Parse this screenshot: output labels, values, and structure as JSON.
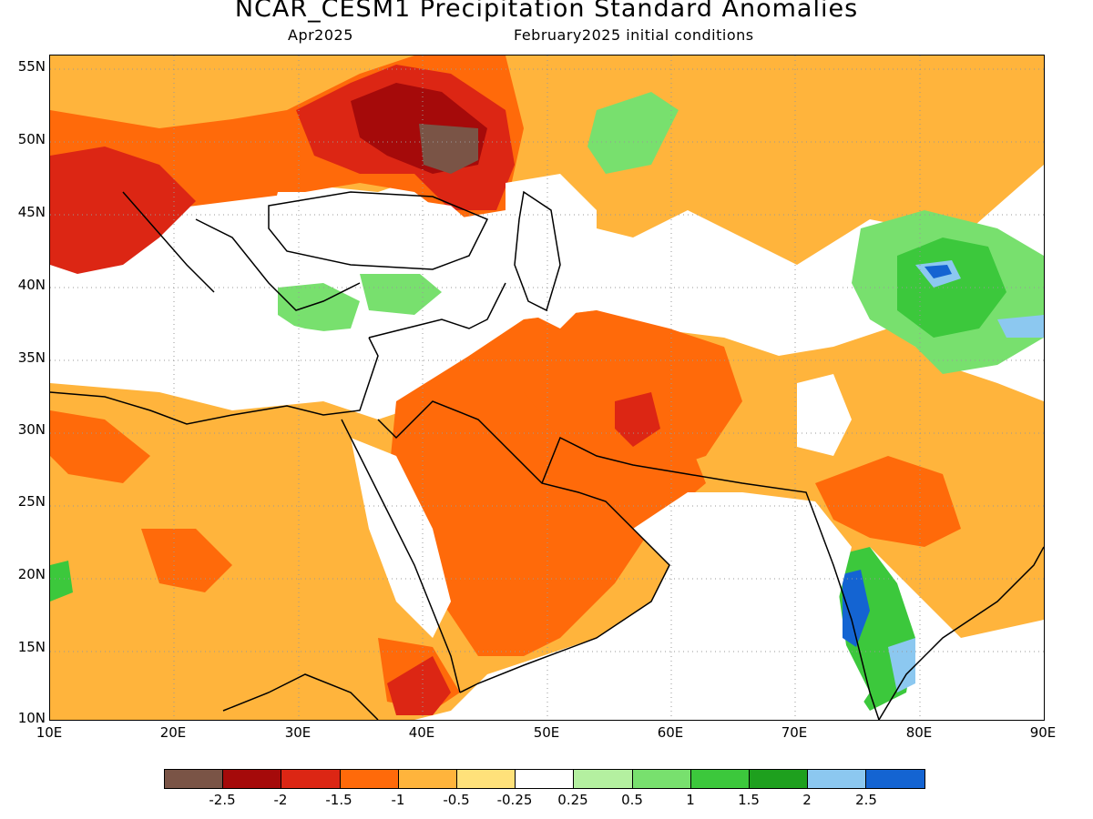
{
  "title": "NCAR_CESM1 Precipitation Standard Anomalies",
  "valid_month": "Apr2025",
  "initial_conditions": "February2025 initial conditions",
  "lat_labels": [
    "55N",
    "50N",
    "45N",
    "40N",
    "35N",
    "30N",
    "25N",
    "20N",
    "15N",
    "10N"
  ],
  "lon_labels": [
    "10E",
    "20E",
    "30E",
    "40E",
    "50E",
    "60E",
    "70E",
    "80E",
    "90E"
  ],
  "colorbar": {
    "colors": [
      "#7a5446",
      "#a50a0a",
      "#dc2614",
      "#ff6a0a",
      "#ffb43c",
      "#ffe17a",
      "#ffffff",
      "#b4f0a0",
      "#78e06e",
      "#3cc83c",
      "#1ea01e",
      "#8cc8f0",
      "#1464d2"
    ],
    "labels": [
      "-2.5",
      "-2",
      "-1.5",
      "-1",
      "-0.5",
      "-0.25",
      "0.25",
      "0.5",
      "1",
      "1.5",
      "2",
      "2.5"
    ]
  }
}
